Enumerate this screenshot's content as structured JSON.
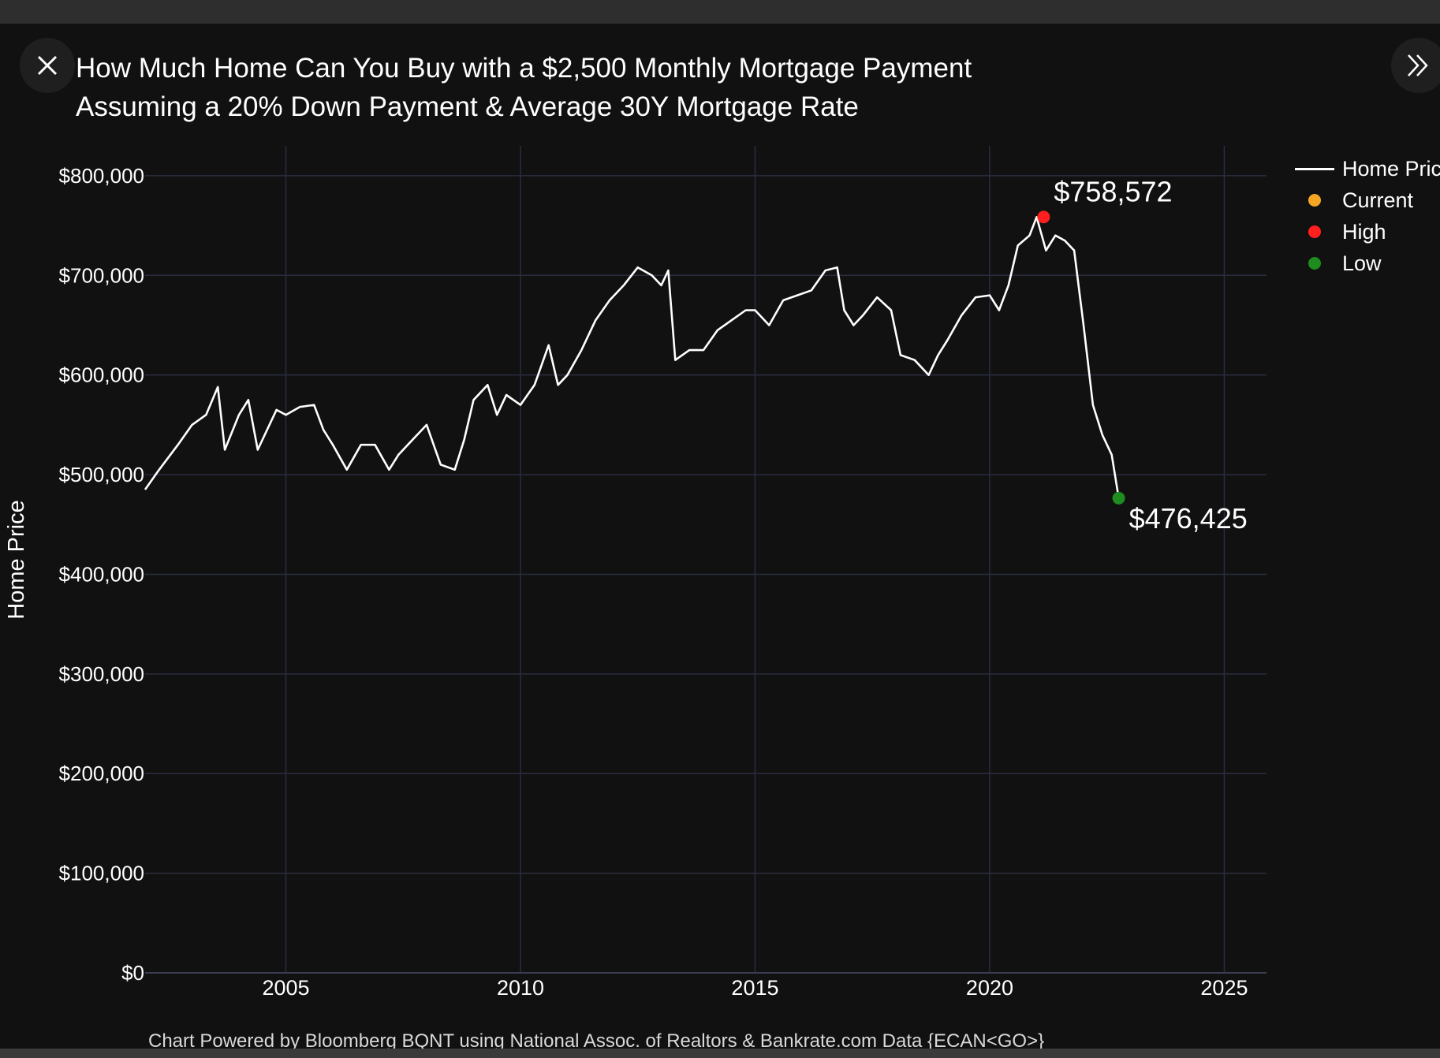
{
  "title_line1": "How Much Home Can You Buy with a $2,500 Monthly Mortgage Payment",
  "title_line2": "Assuming a 20% Down Payment & Average 30Y Mortgage Rate",
  "source_note": "Chart Powered by Bloomberg BQNT using National Assoc. of Realtors & Bankrate.com Data   {ECAN<GO>}",
  "colors": {
    "background": "#111111",
    "line": "#ffffff",
    "current": "#f5a623",
    "high": "#ff1f1f",
    "low": "#1e8c1e",
    "grid": "#2a2d3f"
  },
  "icons": {
    "close": "close-icon",
    "next": "double-chevron-right-icon"
  },
  "chart_data": {
    "type": "line",
    "title": "How Much Home Can You Buy with a $2,500 Monthly Mortgage Payment Assuming a 20% Down Payment & Average 30Y Mortgage Rate",
    "xlabel": "",
    "ylabel": "Home Price",
    "xlim": [
      2002.0,
      2025.9
    ],
    "ylim": [
      0,
      830000
    ],
    "xticks": [
      2005,
      2010,
      2015,
      2020,
      2025
    ],
    "yticks": [
      0,
      100000,
      200000,
      300000,
      400000,
      500000,
      600000,
      700000,
      800000
    ],
    "ytick_labels": [
      "$0",
      "$100,000",
      "$200,000",
      "$300,000",
      "$400,000",
      "$500,000",
      "$600,000",
      "$700,000",
      "$800,000"
    ],
    "grid": true,
    "legend_position": "top-right",
    "legend": [
      "Home Price",
      "Current",
      "High",
      "Low"
    ],
    "series": [
      {
        "name": "Home Price",
        "x": [
          2002.0,
          2002.3,
          2002.7,
          2003.0,
          2003.3,
          2003.55,
          2003.7,
          2004.0,
          2004.2,
          2004.4,
          2004.6,
          2004.8,
          2005.0,
          2005.3,
          2005.6,
          2005.8,
          2006.0,
          2006.3,
          2006.6,
          2006.9,
          2007.2,
          2007.4,
          2007.7,
          2008.0,
          2008.3,
          2008.6,
          2008.8,
          2009.0,
          2009.3,
          2009.5,
          2009.7,
          2010.0,
          2010.3,
          2010.6,
          2010.8,
          2011.0,
          2011.3,
          2011.6,
          2011.9,
          2012.2,
          2012.5,
          2012.8,
          2013.0,
          2013.15,
          2013.3,
          2013.6,
          2013.9,
          2014.2,
          2014.5,
          2014.8,
          2015.0,
          2015.3,
          2015.6,
          2015.9,
          2016.2,
          2016.5,
          2016.75,
          2016.9,
          2017.1,
          2017.3,
          2017.6,
          2017.9,
          2018.1,
          2018.4,
          2018.7,
          2018.9,
          2019.1,
          2019.4,
          2019.7,
          2020.0,
          2020.2,
          2020.4,
          2020.6,
          2020.85,
          2021.0,
          2021.2,
          2021.4,
          2021.6,
          2021.8,
          2022.0,
          2022.2,
          2022.4,
          2022.6,
          2022.75
        ],
        "values": [
          485000,
          505000,
          530000,
          550000,
          560000,
          588000,
          525000,
          560000,
          575000,
          525000,
          545000,
          565000,
          560000,
          568000,
          570000,
          545000,
          530000,
          505000,
          530000,
          530000,
          505000,
          520000,
          535000,
          550000,
          510000,
          505000,
          535000,
          575000,
          590000,
          560000,
          580000,
          570000,
          590000,
          630000,
          590000,
          600000,
          625000,
          655000,
          675000,
          690000,
          708000,
          700000,
          690000,
          705000,
          615000,
          625000,
          625000,
          645000,
          655000,
          665000,
          665000,
          650000,
          675000,
          680000,
          685000,
          705000,
          708000,
          665000,
          650000,
          660000,
          678000,
          665000,
          620000,
          615000,
          600000,
          620000,
          635000,
          660000,
          678000,
          680000,
          665000,
          690000,
          730000,
          740000,
          758572,
          725000,
          740000,
          735000,
          725000,
          650000,
          570000,
          540000,
          520000,
          476425
        ]
      }
    ],
    "markers": [
      {
        "name": "High",
        "x": 2021.15,
        "y": 758572,
        "label": "$758,572"
      },
      {
        "name": "Low",
        "x": 2022.75,
        "y": 476425,
        "label": "$476,425"
      }
    ]
  }
}
